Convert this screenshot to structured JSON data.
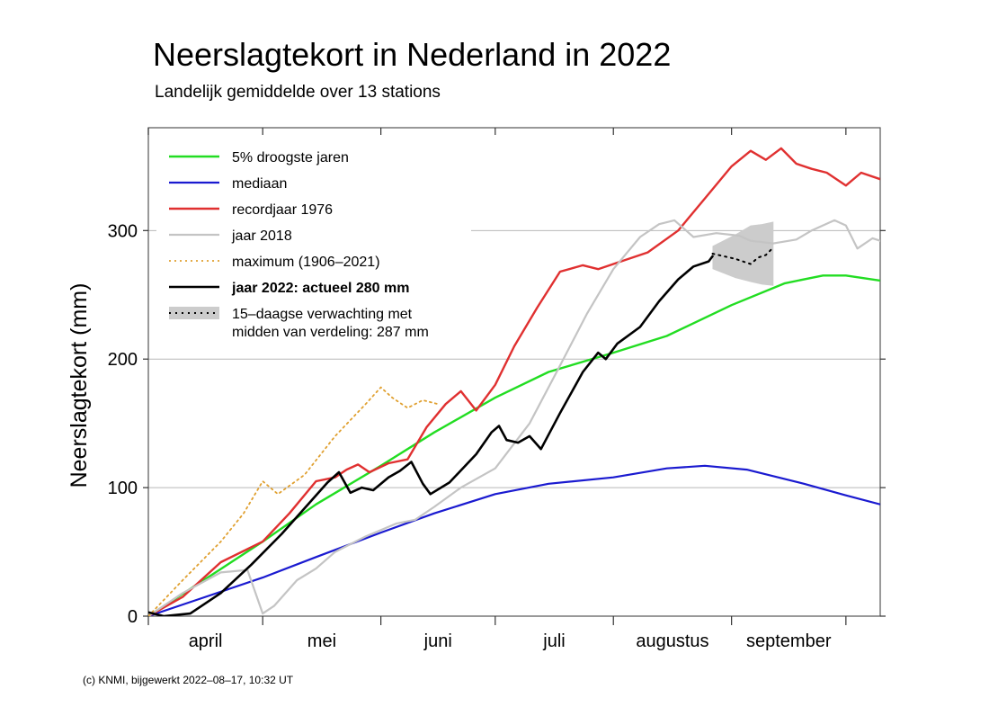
{
  "title": "Neerslagtekort in Nederland in 2022",
  "subtitle": "Landelijk gemiddelde over 13 stations",
  "footer": "(c) KNMI, bijgewerkt 2022–08–17, 10:32 UT",
  "chart_data": {
    "type": "line",
    "ylabel": "Neerslagtekort (mm)",
    "xlabel": "",
    "ylim": [
      0,
      380
    ],
    "yticks": [
      0,
      100,
      200,
      300
    ],
    "grid": "horizontal",
    "legend_position": "top-left",
    "month_labels": [
      "april",
      "mei",
      "juni",
      "juli",
      "augustus",
      "september"
    ],
    "legend": [
      {
        "key": "droogste",
        "label": "5% droogste jaren"
      },
      {
        "key": "mediaan",
        "label": "mediaan"
      },
      {
        "key": "record1976",
        "label": "recordjaar 1976"
      },
      {
        "key": "jaar2018",
        "label": "jaar 2018"
      },
      {
        "key": "maximum",
        "label": "maximum (1906–2021)"
      },
      {
        "key": "jaar2022",
        "label": "jaar 2022: actueel 280 mm"
      },
      {
        "key": "verwachting",
        "label": "15–daagse verwachting met",
        "label2": "midden van verdeling: 287 mm"
      }
    ],
    "series": [
      {
        "key": "droogste",
        "color": "#22dd22",
        "width": 2.4,
        "points": [
          [
            "04-01",
            0
          ],
          [
            "04-15",
            27
          ],
          [
            "05-01",
            58
          ],
          [
            "05-15",
            87
          ],
          [
            "06-01",
            117
          ],
          [
            "06-15",
            143
          ],
          [
            "07-01",
            170
          ],
          [
            "07-15",
            190
          ],
          [
            "08-01",
            205
          ],
          [
            "08-15",
            218
          ],
          [
            "09-01",
            242
          ],
          [
            "09-15",
            259
          ],
          [
            "09-25",
            265
          ],
          [
            "10-01",
            265
          ],
          [
            "10-10",
            261
          ]
        ]
      },
      {
        "key": "mediaan",
        "color": "#1a1ad0",
        "width": 2.2,
        "points": [
          [
            "04-01",
            0
          ],
          [
            "04-15",
            14
          ],
          [
            "05-01",
            30
          ],
          [
            "05-15",
            46
          ],
          [
            "06-01",
            65
          ],
          [
            "06-15",
            80
          ],
          [
            "07-01",
            95
          ],
          [
            "07-15",
            103
          ],
          [
            "08-01",
            108
          ],
          [
            "08-15",
            115
          ],
          [
            "08-25",
            117
          ],
          [
            "09-05",
            114
          ],
          [
            "09-20",
            103
          ],
          [
            "10-01",
            94
          ],
          [
            "10-10",
            87
          ]
        ]
      },
      {
        "key": "record1976",
        "color": "#e03030",
        "width": 2.4,
        "points": [
          [
            "04-01",
            0
          ],
          [
            "04-10",
            15
          ],
          [
            "04-20",
            42
          ],
          [
            "05-01",
            58
          ],
          [
            "05-08",
            80
          ],
          [
            "05-15",
            105
          ],
          [
            "05-20",
            108
          ],
          [
            "05-23",
            114
          ],
          [
            "05-26",
            118
          ],
          [
            "05-29",
            112
          ],
          [
            "06-03",
            119
          ],
          [
            "06-08",
            122
          ],
          [
            "06-13",
            147
          ],
          [
            "06-18",
            165
          ],
          [
            "06-22",
            175
          ],
          [
            "06-26",
            160
          ],
          [
            "07-01",
            180
          ],
          [
            "07-06",
            210
          ],
          [
            "07-12",
            240
          ],
          [
            "07-18",
            268
          ],
          [
            "07-24",
            273
          ],
          [
            "07-28",
            270
          ],
          [
            "08-03",
            276
          ],
          [
            "08-10",
            283
          ],
          [
            "08-18",
            300
          ],
          [
            "08-25",
            325
          ],
          [
            "09-01",
            350
          ],
          [
            "09-06",
            362
          ],
          [
            "09-10",
            355
          ],
          [
            "09-14",
            364
          ],
          [
            "09-18",
            352
          ],
          [
            "09-22",
            348
          ],
          [
            "09-26",
            345
          ],
          [
            "10-01",
            335
          ],
          [
            "10-05",
            345
          ],
          [
            "10-10",
            340
          ]
        ]
      },
      {
        "key": "jaar2018",
        "color": "#c4c4c4",
        "width": 2.2,
        "points": [
          [
            "04-01",
            0
          ],
          [
            "04-10",
            18
          ],
          [
            "04-20",
            34
          ],
          [
            "04-27",
            36
          ],
          [
            "05-01",
            2
          ],
          [
            "05-04",
            8
          ],
          [
            "05-10",
            28
          ],
          [
            "05-15",
            37
          ],
          [
            "05-20",
            50
          ],
          [
            "05-28",
            62
          ],
          [
            "06-05",
            72
          ],
          [
            "06-10",
            75
          ],
          [
            "06-15",
            85
          ],
          [
            "06-22",
            100
          ],
          [
            "07-01",
            115
          ],
          [
            "07-10",
            150
          ],
          [
            "07-18",
            195
          ],
          [
            "07-25",
            235
          ],
          [
            "08-01",
            270
          ],
          [
            "08-08",
            295
          ],
          [
            "08-13",
            305
          ],
          [
            "08-17",
            308
          ],
          [
            "08-22",
            295
          ],
          [
            "08-28",
            298
          ],
          [
            "09-03",
            296
          ],
          [
            "09-06",
            292
          ],
          [
            "09-12",
            290
          ],
          [
            "09-18",
            293
          ],
          [
            "09-22",
            300
          ],
          [
            "09-28",
            308
          ],
          [
            "10-01",
            304
          ],
          [
            "10-04",
            286
          ],
          [
            "10-08",
            294
          ],
          [
            "10-10",
            292
          ]
        ]
      },
      {
        "key": "maximum",
        "color": "#e0a030",
        "width": 1.8,
        "dash": "2,4",
        "points": [
          [
            "04-01",
            0
          ],
          [
            "04-10",
            28
          ],
          [
            "04-20",
            58
          ],
          [
            "04-26",
            80
          ],
          [
            "05-01",
            105
          ],
          [
            "05-05",
            95
          ],
          [
            "05-12",
            110
          ],
          [
            "05-20",
            140
          ],
          [
            "05-28",
            165
          ],
          [
            "06-01",
            178
          ],
          [
            "06-04",
            170
          ],
          [
            "06-08",
            162
          ],
          [
            "06-12",
            168
          ],
          [
            "06-16",
            165
          ]
        ]
      },
      {
        "key": "jaar2022",
        "color": "#000000",
        "width": 2.6,
        "points": [
          [
            "04-01",
            3
          ],
          [
            "04-05",
            0
          ],
          [
            "04-12",
            2
          ],
          [
            "04-20",
            18
          ],
          [
            "04-28",
            40
          ],
          [
            "05-06",
            64
          ],
          [
            "05-12",
            84
          ],
          [
            "05-18",
            104
          ],
          [
            "05-21",
            112
          ],
          [
            "05-24",
            96
          ],
          [
            "05-27",
            100
          ],
          [
            "05-30",
            98
          ],
          [
            "06-03",
            108
          ],
          [
            "06-06",
            113
          ],
          [
            "06-09",
            120
          ],
          [
            "06-12",
            103
          ],
          [
            "06-14",
            95
          ],
          [
            "06-19",
            104
          ],
          [
            "06-26",
            126
          ],
          [
            "06-30",
            143
          ],
          [
            "07-02",
            148
          ],
          [
            "07-04",
            137
          ],
          [
            "07-07",
            135
          ],
          [
            "07-10",
            140
          ],
          [
            "07-13",
            130
          ],
          [
            "07-18",
            158
          ],
          [
            "07-24",
            190
          ],
          [
            "07-28",
            205
          ],
          [
            "07-30",
            200
          ],
          [
            "08-02",
            212
          ],
          [
            "08-08",
            225
          ],
          [
            "08-13",
            245
          ],
          [
            "08-18",
            262
          ],
          [
            "08-22",
            272
          ],
          [
            "08-26",
            276
          ],
          [
            "08-27",
            280
          ]
        ]
      },
      {
        "key": "verwachting",
        "color": "#000000",
        "width": 2.0,
        "dash": "2,5",
        "points": [
          [
            "08-27",
            282
          ],
          [
            "08-30",
            280
          ],
          [
            "09-02",
            278
          ],
          [
            "09-06",
            274
          ],
          [
            "09-08",
            279
          ],
          [
            "09-10",
            281
          ],
          [
            "09-12",
            287
          ]
        ]
      }
    ],
    "forecast_band": {
      "upper": [
        [
          "08-27",
          288
        ],
        [
          "09-02",
          297
        ],
        [
          "09-06",
          304
        ],
        [
          "09-09",
          305
        ],
        [
          "09-12",
          307
        ]
      ],
      "lower": [
        [
          "08-27",
          270
        ],
        [
          "09-02",
          263
        ],
        [
          "09-06",
          260
        ],
        [
          "09-09",
          258
        ],
        [
          "09-12",
          257
        ]
      ],
      "color": "#cccccc"
    }
  }
}
